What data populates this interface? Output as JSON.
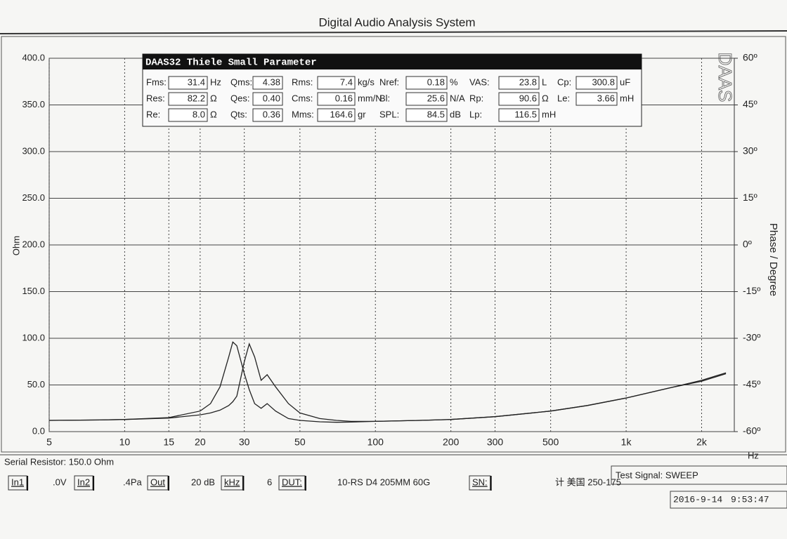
{
  "chart_data": {
    "type": "line",
    "title": "Digital Audio Analysis System",
    "y_label": "Ohm",
    "y2_label": "Phase / Degree",
    "x_unit": "Hz",
    "x_scale": "log",
    "grid": true,
    "xlim": [
      5,
      2700
    ],
    "xticks": [
      5,
      10,
      15,
      20,
      30,
      50,
      100,
      200,
      300,
      500,
      {
        "value": 1000,
        "label": "1k"
      },
      {
        "value": 2000,
        "label": "2k"
      }
    ],
    "ylim": [
      0,
      400
    ],
    "yticks": [
      {
        "value": 0,
        "label": "0.0"
      },
      {
        "value": 50,
        "label": "50.0"
      },
      {
        "value": 100,
        "label": "100.0"
      },
      {
        "value": 150,
        "label": "150.0"
      },
      {
        "value": 200,
        "label": "200.0"
      },
      {
        "value": 250,
        "label": "250.0"
      },
      {
        "value": 300,
        "label": "300.0"
      },
      {
        "value": 350,
        "label": "350.0"
      },
      {
        "value": 400,
        "label": "400.0"
      }
    ],
    "y2lim": [
      -60,
      60
    ],
    "y2ticks": [
      {
        "value": -60,
        "label": "-60º"
      },
      {
        "value": -45,
        "label": "-45º"
      },
      {
        "value": -30,
        "label": "-30º"
      },
      {
        "value": -15,
        "label": "-15º"
      },
      {
        "value": 0,
        "label": "0º"
      },
      {
        "value": 15,
        "label": "15º"
      },
      {
        "value": 30,
        "label": "30º"
      },
      {
        "value": 45,
        "label": "45º"
      },
      {
        "value": 60,
        "label": "60º"
      }
    ],
    "x": [
      5,
      8,
      10,
      15,
      20,
      22,
      24,
      26,
      27,
      28,
      30,
      31.4,
      33,
      35,
      37,
      40,
      45,
      50,
      60,
      70,
      80,
      100,
      150,
      200,
      300,
      500,
      700,
      1000,
      1500,
      2000,
      2500
    ],
    "series": [
      {
        "color": "#222222",
        "values": [
          12,
          12.5,
          13,
          15,
          22,
          30,
          48,
          80,
          96,
          92,
          62,
          45,
          30,
          25,
          30,
          22,
          14,
          12,
          10.5,
          10,
          10.2,
          11,
          12,
          13,
          16,
          22,
          28,
          36,
          47,
          54,
          62
        ]
      },
      {
        "color": "#222222",
        "values": [
          12,
          12.5,
          13,
          14.5,
          18,
          20,
          23,
          28,
          32,
          38,
          75,
          94,
          80,
          55,
          61,
          48,
          30,
          20,
          14,
          12,
          11,
          11,
          12,
          13,
          16,
          22,
          28,
          36,
          47,
          55,
          63
        ]
      }
    ]
  },
  "parameters": {
    "title": "DAAS32 Thiele Small Parameter",
    "logo": "DAAS",
    "rows": [
      [
        {
          "label": "Fms:",
          "value": "31.4",
          "unit": "Hz"
        },
        {
          "label": "Qms:",
          "value": "4.38"
        },
        {
          "label": "Rms:",
          "value": "7.4",
          "unit": "kg/s"
        },
        {
          "label": "Nref:",
          "value": "0.18",
          "unit": "%"
        },
        {
          "label": "VAS:",
          "value": "23.8",
          "unit": "L"
        },
        {
          "label": "Cp:",
          "value": "300.8",
          "unit": "uF"
        }
      ],
      [
        {
          "label": "Res:",
          "value": "82.2",
          "unit": "Ω"
        },
        {
          "label": "Qes:",
          "value": "0.40"
        },
        {
          "label": "Cms:",
          "value": "0.16",
          "unit": "mm/N"
        },
        {
          "label": "Bl:",
          "value": "25.6",
          "unit": "N/A"
        },
        {
          "label": "Rp:",
          "value": "90.6",
          "unit": "Ω"
        },
        {
          "label": "Le:",
          "value": "3.66",
          "unit": "mH"
        }
      ],
      [
        {
          "label": "Re:",
          "value": "8.0",
          "unit": "Ω"
        },
        {
          "label": "Qts:",
          "value": "0.36"
        },
        {
          "label": "Mms:",
          "value": "164.6",
          "unit": "gr"
        },
        {
          "label": "SPL:",
          "value": "84.5",
          "unit": "dB"
        },
        {
          "label": "Lp:",
          "value": "116.5",
          "unit": "mH"
        }
      ]
    ]
  },
  "footer": {
    "serial_resistor": "Serial Resistor: 150.0 Ohm",
    "test_signal": "Test Signal: SWEEP",
    "controls": [
      {
        "text": "In1",
        "boxed": true
      },
      {
        "text": ".0V"
      },
      {
        "text": "In2",
        "boxed": true
      },
      {
        "text": ".4Pa"
      },
      {
        "text": "Out",
        "boxed": true
      },
      {
        "text": "20 dB"
      },
      {
        "text": "kHz",
        "boxed": true
      },
      {
        "text": "6"
      },
      {
        "text": "DUT:",
        "boxed": true
      },
      {
        "text": "10-RS  D4  205MM  60G"
      },
      {
        "text": "SN:",
        "boxed": true
      },
      {
        "text": "计 美国 250-175"
      }
    ],
    "date": "2016-9-14",
    "time": "9:53:47"
  }
}
